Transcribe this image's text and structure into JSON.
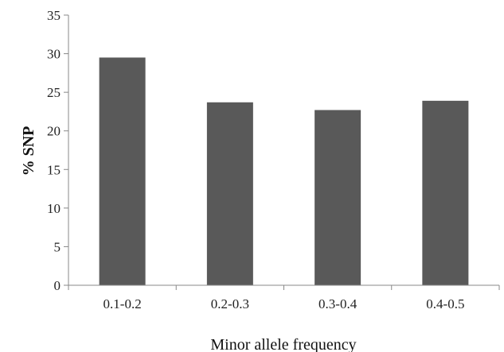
{
  "chart_data": {
    "type": "bar",
    "categories": [
      "0.1-0.2",
      "0.2-0.3",
      "0.3-0.4",
      "0.4-0.5"
    ],
    "values": [
      29.5,
      23.7,
      22.7,
      23.9
    ],
    "xlabel": "Minor allele frequency",
    "ylabel": "% SNP",
    "ylim": [
      0,
      35
    ],
    "yticks": [
      "0",
      "5",
      "10",
      "15",
      "20",
      "25",
      "30",
      "35"
    ],
    "grid": false,
    "legend": "none",
    "colors": {
      "bar": "#595959",
      "axis": "#888888"
    }
  }
}
